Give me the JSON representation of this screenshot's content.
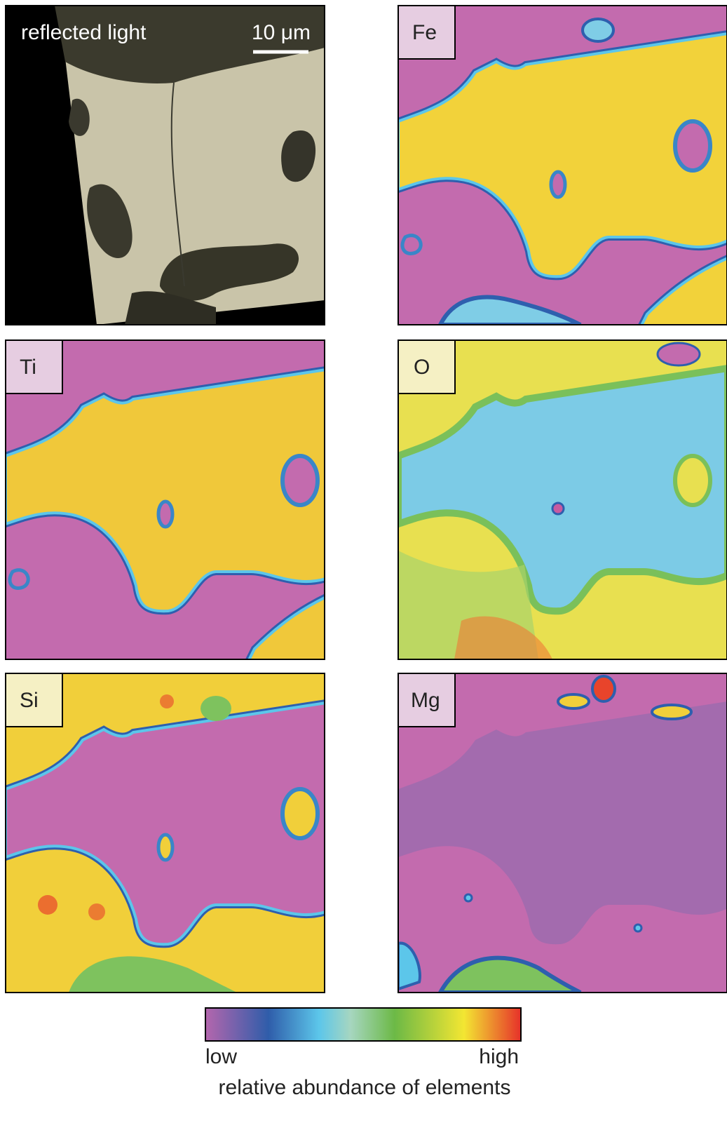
{
  "panels": [
    {
      "label": "reflected light",
      "scale": "10 μm"
    },
    {
      "label": "Fe"
    },
    {
      "label": "Ti"
    },
    {
      "label": "O"
    },
    {
      "label": "Si"
    },
    {
      "label": "Mg"
    }
  ],
  "colorbar": {
    "low": "low",
    "high": "high",
    "caption": "relative abundance of elements"
  }
}
